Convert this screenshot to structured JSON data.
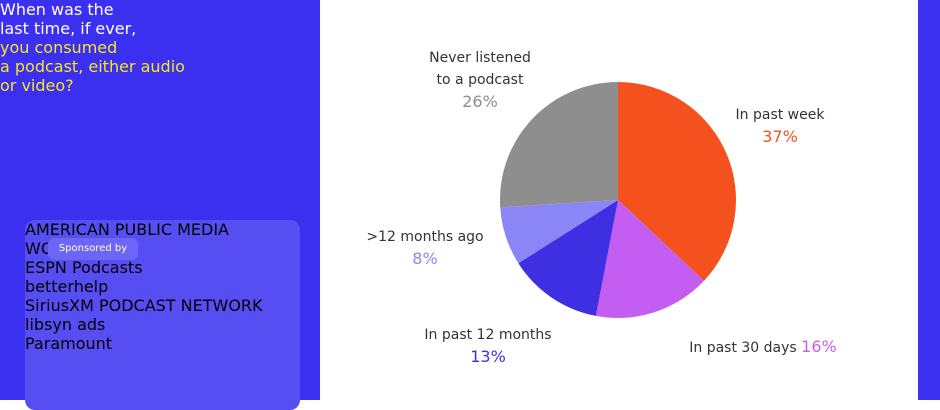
{
  "heading_lines": [
    {
      "text": "When was the",
      "color": "#ffffff"
    },
    {
      "text": "last time, if ever,",
      "color": "#ffffff"
    },
    {
      "text": "you consumed",
      "color": "#f5e625"
    },
    {
      "text": "a podcast, either audio",
      "color": "#f5e625"
    },
    {
      "text": "or video?",
      "color": "#f5e625"
    }
  ],
  "sponsors": {
    "label": "Sponsored by",
    "logos": [
      "AMERICAN PUBLIC MEDIA",
      "WONDERY",
      "ESPN Podcasts",
      "betterhelp",
      "SiriusXM PODCAST NETWORK",
      "libsyn ads",
      "Paramount"
    ]
  },
  "chart_data": {
    "type": "pie",
    "categories": [
      "In past week",
      "In past 30 days",
      "In past 12 months",
      ">12 months ago",
      "Never listened to a podcast"
    ],
    "values": [
      37,
      16,
      13,
      8,
      26
    ],
    "value_labels": [
      "37%",
      "16%",
      "13%",
      "8%",
      "26%"
    ],
    "colors": [
      "#f4511e",
      "#c45ef2",
      "#3e2fe3",
      "#8b86f6",
      "#8e8e8e"
    ]
  }
}
